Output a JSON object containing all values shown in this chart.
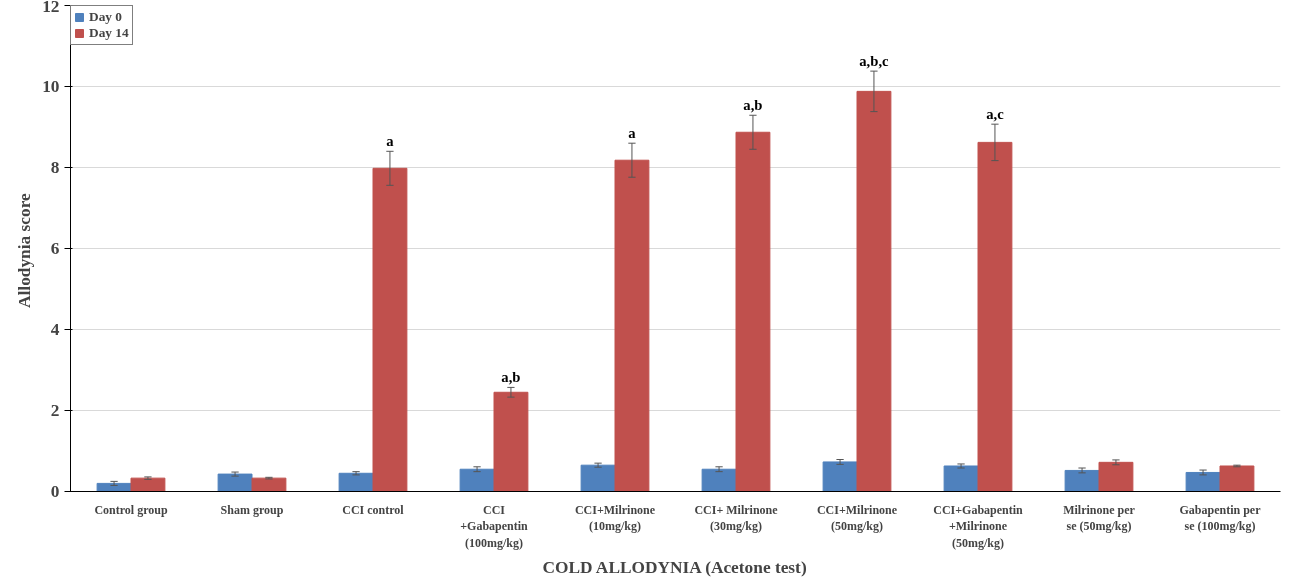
{
  "chart_data": {
    "type": "bar",
    "xlabel": "COLD ALLODYNIA (Acetone test)",
    "ylabel": "Allodynia  score",
    "categories": [
      "Control group",
      "Sham group",
      "CCI control",
      "CCI +Gabapentin (100mg/kg)",
      "CCI+Milrinone (10mg/kg)",
      "CCI+ Milrinone (30mg/kg)",
      "CCI+Milrinone (50mg/kg)",
      "CCI+Gabapentin +Milrinone (50mg/kg)",
      "Milrinone per se (50mg/kg)",
      "Gabapentin per se (100mg/kg)"
    ],
    "series": [
      {
        "name": "Day 0",
        "color": "#4f81bd",
        "values": [
          0.2,
          0.43,
          0.45,
          0.55,
          0.65,
          0.55,
          0.73,
          0.63,
          0.52,
          0.47
        ],
        "errors": [
          0.05,
          0.05,
          0.04,
          0.06,
          0.05,
          0.06,
          0.06,
          0.05,
          0.06,
          0.06
        ]
      },
      {
        "name": "Day 14",
        "color": "#c0504d",
        "values": [
          0.33,
          0.33,
          7.98,
          2.45,
          8.18,
          8.87,
          9.88,
          8.62,
          0.72,
          0.63
        ],
        "errors": [
          0.03,
          0.02,
          0.42,
          0.12,
          0.42,
          0.42,
          0.5,
          0.45,
          0.06,
          0.02
        ]
      }
    ],
    "annotations": [
      {
        "text": "a",
        "x": "CCI control",
        "y": 7.98
      },
      {
        "text": "a,b",
        "x": "CCI +Gabapentin (100mg/kg)",
        "y": 2.45
      },
      {
        "text": "a",
        "x": "CCI+Milrinone (10mg/kg)",
        "y": 8.18
      },
      {
        "text": "a,b",
        "x": "CCI+ Milrinone (30mg/kg)",
        "y": 8.87
      },
      {
        "text": "a,b,c",
        "x": "CCI+Milrinone (50mg/kg)",
        "y": 9.88
      },
      {
        "text": "a,c",
        "x": "CCI+Gabapentin +Milrinone (50mg/kg)",
        "y": 8.62
      }
    ],
    "ylim": [
      0,
      12
    ],
    "yticks": [
      0,
      2,
      4,
      6,
      8,
      10,
      12
    ],
    "grid": "y",
    "legend": "top left"
  }
}
